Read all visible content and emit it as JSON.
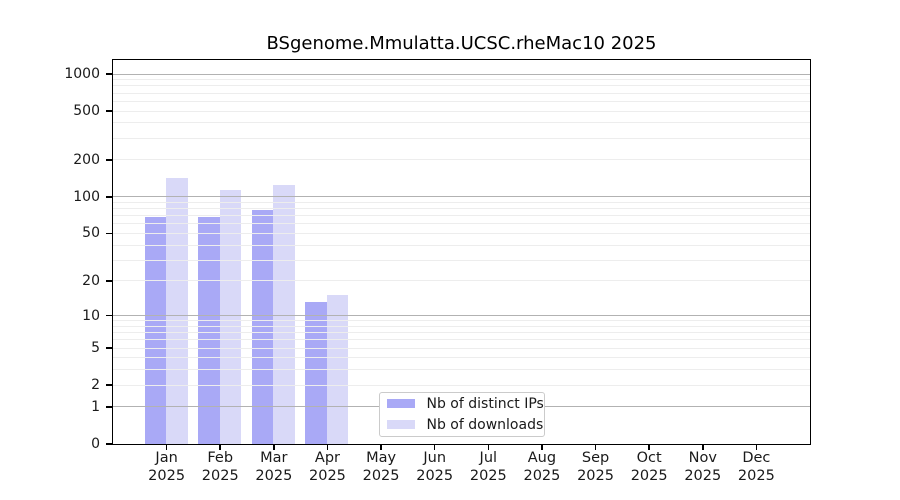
{
  "chart_data": {
    "type": "bar",
    "title": "BSgenome.Mmulatta.UCSC.rheMac10 2025",
    "x_months": [
      "Jan",
      "Feb",
      "Mar",
      "Apr",
      "May",
      "Jun",
      "Jul",
      "Aug",
      "Sep",
      "Oct",
      "Nov",
      "Dec"
    ],
    "x_year": "2025",
    "series": [
      {
        "name": "Nb of distinct IPs",
        "color": "#a9a9f6",
        "values": [
          68,
          68,
          77,
          13,
          0,
          0,
          0,
          0,
          0,
          0,
          0,
          0
        ]
      },
      {
        "name": "Nb of downloads",
        "color": "#d9d9f8",
        "values": [
          141,
          112,
          125,
          15,
          0,
          0,
          0,
          0,
          0,
          0,
          0,
          0
        ]
      }
    ],
    "y_axis": {
      "scale": "log1p",
      "ticks": [
        0,
        1,
        2,
        5,
        10,
        20,
        50,
        100,
        200,
        500,
        1000
      ],
      "range": [
        0,
        1300
      ],
      "grid_major": [
        1,
        10,
        100,
        1000
      ]
    },
    "legend_position": "inside-bottom-center",
    "grid": "on"
  },
  "colors": {
    "grid_major": "#b2b2b2",
    "grid_minor": "#ededed",
    "spine": "#000000",
    "bar_distinct_ips": "#a9a9f6",
    "bar_downloads": "#d9d9f8"
  }
}
